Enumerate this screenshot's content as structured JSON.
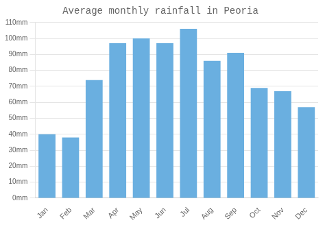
{
  "chart_data": {
    "type": "bar",
    "title": "Average monthly rainfall in Peoria",
    "categories": [
      "Jan",
      "Feb",
      "Mar",
      "Apr",
      "May",
      "Jun",
      "Jul",
      "Aug",
      "Sep",
      "Oct",
      "Nov",
      "Dec"
    ],
    "values": [
      40,
      38,
      74,
      97,
      100,
      97,
      106,
      86,
      91,
      69,
      67,
      57
    ],
    "color": "#6aafe0",
    "ylim": [
      0,
      110
    ],
    "yticks": [
      {
        "value": 0,
        "label": "0mm"
      },
      {
        "value": 10,
        "label": "10mm"
      },
      {
        "value": 20,
        "label": "20mm"
      },
      {
        "value": 30,
        "label": "30mm"
      },
      {
        "value": 40,
        "label": "40mm"
      },
      {
        "value": 50,
        "label": "50mm"
      },
      {
        "value": 60,
        "label": "60mm"
      },
      {
        "value": 70,
        "label": "70mm"
      },
      {
        "value": 80,
        "label": "80mm"
      },
      {
        "value": 90,
        "label": "90mm"
      },
      {
        "value": 100,
        "label": "100mm"
      },
      {
        "value": 110,
        "label": "110mm"
      }
    ],
    "grid": true
  }
}
